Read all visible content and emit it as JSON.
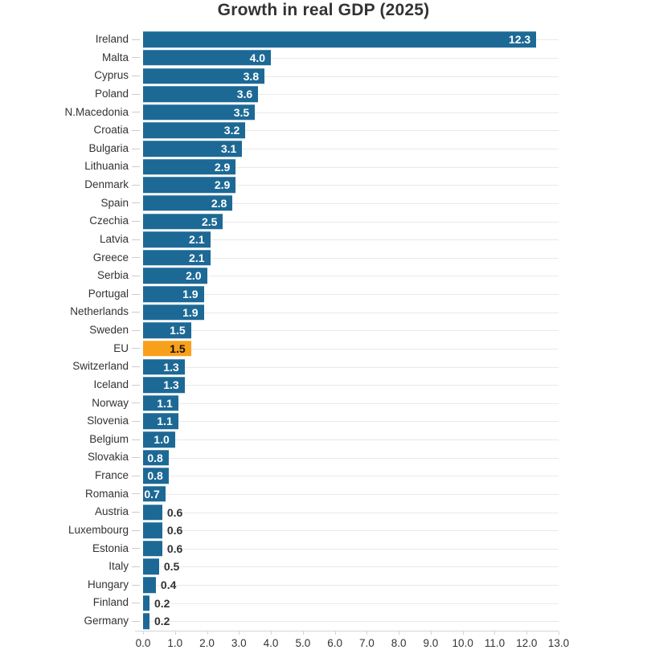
{
  "title": "Growth in real GDP (2025)",
  "colors": {
    "bar": "#1D6996",
    "highlight_bar": "#F9A01B",
    "value_inside": "#FFFFFF",
    "value_on_highlight": "#111111",
    "value_outside": "#333333",
    "category_label": "#333333",
    "axis_label": "#333333",
    "gridline": "#E9E9E9",
    "y_tick": "#CCCCCC",
    "axis_line": "#D5D5D5",
    "title": "#333333",
    "background": "#FFFFFF"
  },
  "chart_data": {
    "type": "bar",
    "orientation": "horizontal",
    "title": "Growth in real GDP (2025)",
    "categories": [
      "Ireland",
      "Malta",
      "Cyprus",
      "Poland",
      "N.Macedonia",
      "Croatia",
      "Bulgaria",
      "Lithuania",
      "Denmark",
      "Spain",
      "Czechia",
      "Latvia",
      "Greece",
      "Serbia",
      "Portugal",
      "Netherlands",
      "Sweden",
      "EU",
      "Switzerland",
      "Iceland",
      "Norway",
      "Slovenia",
      "Belgium",
      "Slovakia",
      "France",
      "Romania",
      "Austria",
      "Luxembourg",
      "Estonia",
      "Italy",
      "Hungary",
      "Finland",
      "Germany"
    ],
    "values": [
      12.3,
      4.0,
      3.8,
      3.6,
      3.5,
      3.2,
      3.1,
      2.9,
      2.9,
      2.8,
      2.5,
      2.1,
      2.1,
      2.0,
      1.9,
      1.9,
      1.5,
      1.5,
      1.3,
      1.3,
      1.1,
      1.1,
      1.0,
      0.8,
      0.8,
      0.7,
      0.6,
      0.6,
      0.6,
      0.5,
      0.4,
      0.2,
      0.2
    ],
    "value_labels": [
      "12.3",
      "4.0",
      "3.8",
      "3.6",
      "3.5",
      "3.2",
      "3.1",
      "2.9",
      "2.9",
      "2.8",
      "2.5",
      "2.1",
      "2.1",
      "2.0",
      "1.9",
      "1.9",
      "1.5",
      "1.5",
      "1.3",
      "1.3",
      "1.1",
      "1.1",
      "1.0",
      "0.8",
      "0.8",
      "0.7",
      "0.6",
      "0.6",
      "0.6",
      "0.5",
      "0.4",
      "0.2",
      "0.2"
    ],
    "highlight_category": "EU",
    "xlabel": "",
    "ylabel": "",
    "xlim": [
      0,
      13
    ],
    "x_tick_labels": [
      "0.0",
      "1.0",
      "2.0",
      "3.0",
      "4.0",
      "5.0",
      "6.0",
      "7.0",
      "8.0",
      "9.0",
      "10.0",
      "11.0",
      "12.0",
      "13.0"
    ],
    "grid": "horizontal category gridlines",
    "legend": "none"
  }
}
